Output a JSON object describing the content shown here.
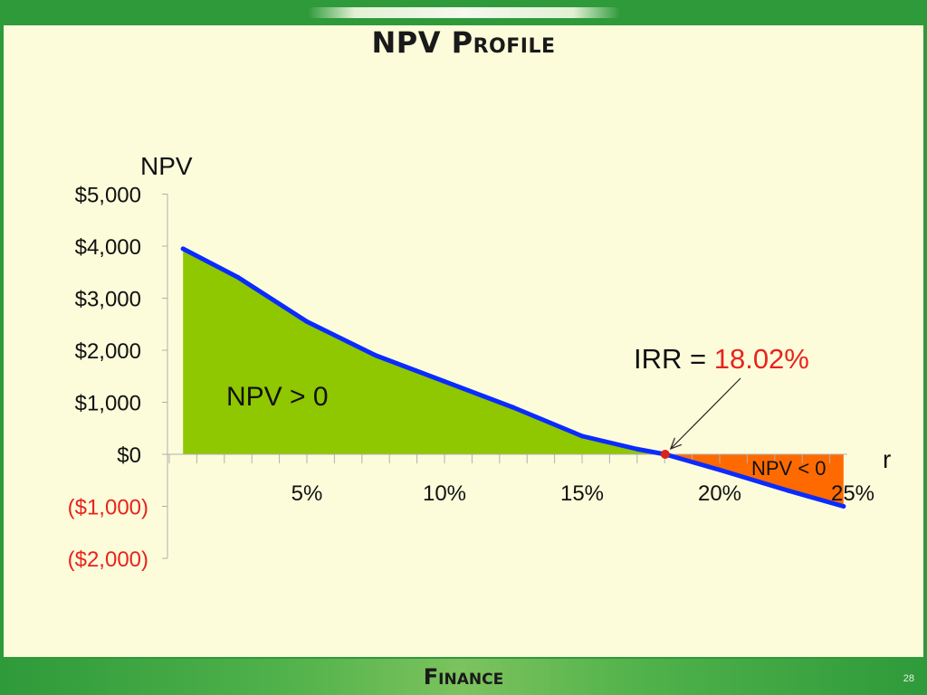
{
  "slide": {
    "title": "NPV Profile",
    "footer": "Finance",
    "page_number": "28"
  },
  "chart_data": {
    "type": "area",
    "ylabel": "NPV",
    "xlabel": "r",
    "x": [
      0.5,
      2.5,
      5,
      7.5,
      10,
      12.5,
      15,
      17,
      18.02,
      20,
      22.5,
      24.5
    ],
    "y": [
      3950,
      3400,
      2550,
      1900,
      1400,
      900,
      350,
      100,
      0,
      -300,
      -700,
      -1000
    ],
    "xlim": [
      -0.5,
      25
    ],
    "ylim": [
      -2000,
      5000
    ],
    "y_ticks": [
      {
        "value": 5000,
        "label": "$5,000"
      },
      {
        "value": 4000,
        "label": "$4,000"
      },
      {
        "value": 3000,
        "label": "$3,000"
      },
      {
        "value": 2000,
        "label": "$2,000"
      },
      {
        "value": 1000,
        "label": "$1,000"
      },
      {
        "value": 0,
        "label": "$0"
      },
      {
        "value": -1000,
        "label": "($1,000)"
      },
      {
        "value": -2000,
        "label": "($2,000)"
      }
    ],
    "x_ticks": [
      {
        "value": 5,
        "label": "5%"
      },
      {
        "value": 10,
        "label": "10%"
      },
      {
        "value": 15,
        "label": "15%"
      },
      {
        "value": 20,
        "label": "20%"
      },
      {
        "value": 25,
        "label": "25%"
      }
    ],
    "irr": 18.02,
    "annotations": {
      "positive_region": "NPV > 0",
      "negative_region": "NPV < 0",
      "irr_prefix": "IRR = ",
      "irr_value": "18.02%"
    },
    "colors": {
      "line": "#0a2bff",
      "positive_fill": "#8fc700",
      "negative_fill": "#ff6a00",
      "negative_label": "#e8241c",
      "irr_value": "#e8241c",
      "irr_point": "#d9241c",
      "axis": "#b0b0b0"
    }
  }
}
